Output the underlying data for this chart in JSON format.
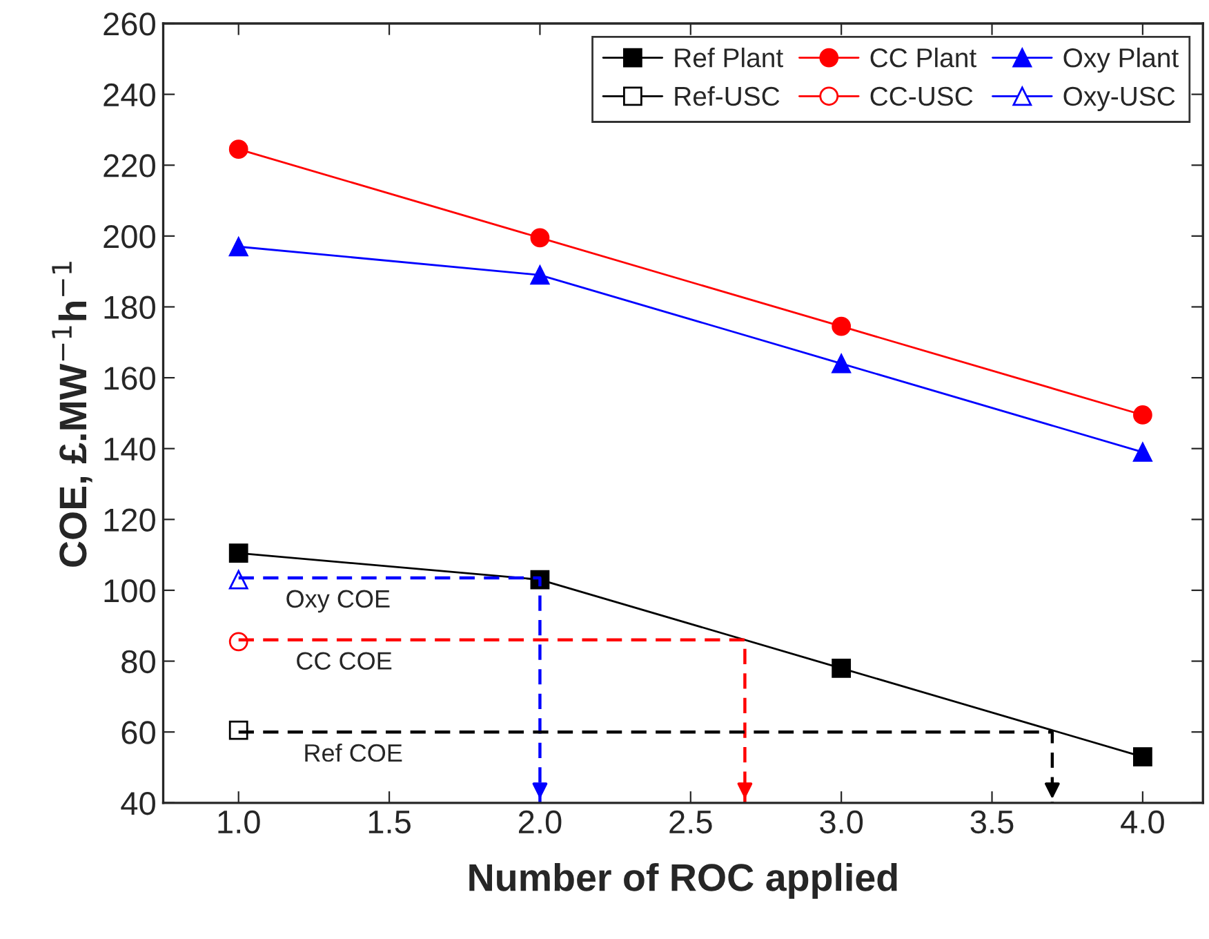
{
  "chart_data": {
    "type": "line",
    "xlabel": "Number of ROC applied",
    "ylabel": "COE, £.MW$^{−1}$h$^{−1}$",
    "xlim": [
      0.75,
      4.2
    ],
    "ylim": [
      40,
      260
    ],
    "xticks": [
      {
        "value": 1.0,
        "label": "1.0"
      },
      {
        "value": 1.5,
        "label": "1.5"
      },
      {
        "value": 2.0,
        "label": "2.0"
      },
      {
        "value": 2.5,
        "label": "2.5"
      },
      {
        "value": 3.0,
        "label": "3.0"
      },
      {
        "value": 3.5,
        "label": "3.5"
      },
      {
        "value": 4.0,
        "label": "4.0"
      }
    ],
    "yticks": [
      40,
      60,
      80,
      100,
      120,
      140,
      160,
      180,
      200,
      220,
      240,
      260
    ],
    "grid": false,
    "legend": "top right",
    "series": [
      {
        "name": "Ref Plant",
        "color": "#000000",
        "x": [
          1,
          2,
          3,
          4
        ],
        "values": [
          110.5,
          103,
          78,
          53
        ],
        "marker": "square",
        "line_style": "solid"
      },
      {
        "name": "Ref-USC",
        "type": "scatter",
        "color": "#000000",
        "x": [
          1
        ],
        "values": [
          60.5
        ],
        "marker": "square"
      },
      {
        "name": "CC Plant",
        "color": "#ff0000",
        "x": [
          1,
          2,
          3,
          4
        ],
        "values": [
          224.5,
          199.5,
          174.5,
          149.5
        ],
        "marker": "circle",
        "line_style": "solid"
      },
      {
        "name": "CC-USC",
        "type": "scatter",
        "color": "#ff0000",
        "x": [
          1
        ],
        "values": [
          85.5
        ],
        "marker": "circle"
      },
      {
        "name": "Oxy Plant",
        "color": "#0000ff",
        "x": [
          1,
          2,
          3,
          4
        ],
        "values": [
          197,
          189,
          164,
          139
        ],
        "marker": "triangle",
        "line_style": "solid"
      },
      {
        "name": "Oxy-USC",
        "type": "scatter",
        "color": "#0000ff",
        "x": [
          1
        ],
        "values": [
          103
        ],
        "marker": "triangle"
      },
      {
        "color": "#0000ff",
        "x": [
          1,
          2,
          2
        ],
        "values": [
          103.5,
          103.5,
          40
        ],
        "marker": "none",
        "line_style": "dashed"
      },
      {
        "color": "#ff0000",
        "x": [
          1,
          2.68,
          2.68
        ],
        "values": [
          86,
          86,
          40
        ],
        "marker": "none",
        "line_style": "dashed"
      },
      {
        "color": "#000000",
        "x": [
          1,
          3.7,
          3.7
        ],
        "values": [
          60,
          60,
          40
        ],
        "marker": "none",
        "line_style": "dashed"
      }
    ],
    "annotations": [
      {
        "text": "Oxy COE",
        "x": 1.33,
        "y": 103.5
      },
      {
        "text": "CC COE",
        "x": 1.35,
        "y": 86
      },
      {
        "text": "Ref COE",
        "x": 1.38,
        "y": 60
      }
    ]
  }
}
